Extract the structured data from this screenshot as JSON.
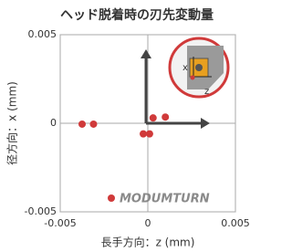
{
  "chart_data": {
    "type": "scatter",
    "title": "ヘッド脱着時の刃先変動量",
    "x_label": "長手方向：z (mm)",
    "y_label": "径方向：x (mm)",
    "x": [
      -0.00375,
      -0.0031,
      -0.00026,
      0.0001,
      0.0003,
      0.001
    ],
    "values": [
      -5e-05,
      -5e-05,
      -0.0006,
      -0.0006,
      0.0003,
      0.00035
    ],
    "color": "#d03a3a",
    "xlim": [
      -0.005,
      0.005
    ],
    "xticks": [
      -0.005,
      0,
      0.005
    ],
    "ylim": [
      -0.005,
      0.005
    ],
    "yticks": [
      -0.005,
      0,
      0.005
    ],
    "grid": true,
    "logo": "MODUMTURN",
    "inset_labels": [
      "x",
      "z"
    ]
  }
}
